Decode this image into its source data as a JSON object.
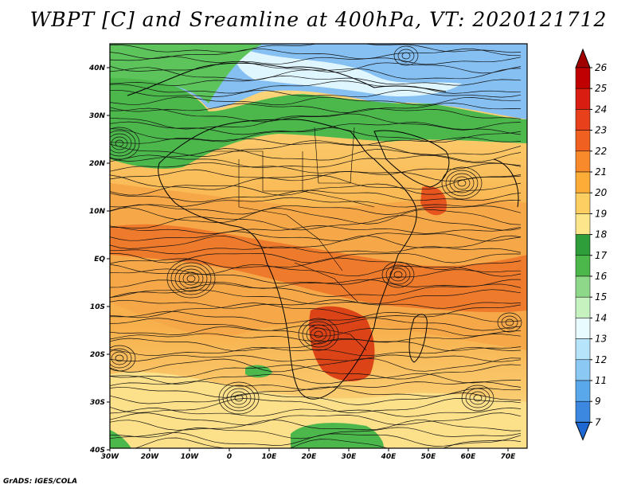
{
  "title": "WBPT [C] and Sreamline at 400hPa, VT: 2020121712",
  "credit": "GrADS: IGES/COLA",
  "map": {
    "lat_ticks": [
      "40N",
      "30N",
      "20N",
      "10N",
      "EQ",
      "10S",
      "20S",
      "30S",
      "40S"
    ],
    "lon_ticks": [
      "30W",
      "20W",
      "10W",
      "0",
      "10E",
      "20E",
      "30E",
      "40E",
      "50E",
      "60E",
      "70E"
    ],
    "lat_range": [
      -40,
      45
    ],
    "lon_range": [
      -30,
      75
    ]
  },
  "colorbar": {
    "labels": [
      "26",
      "25",
      "24",
      "23",
      "22",
      "21",
      "20",
      "19",
      "18",
      "17",
      "16",
      "15",
      "14",
      "13",
      "12",
      "11",
      "9",
      "7"
    ],
    "colors": [
      "#c00000",
      "#d81e10",
      "#e8401a",
      "#f06020",
      "#f88a2c",
      "#fbad38",
      "#fdce62",
      "#fde68a",
      "#2e9e3a",
      "#4cb84c",
      "#8ed88a",
      "#c6f2c0",
      "#e8fbff",
      "#b6e4fa",
      "#8cc8f4",
      "#5aa8ec",
      "#3c88e0",
      "#1e68d4"
    ]
  },
  "zones": [
    {
      "name": "blue-north",
      "color": "#7cb8f0"
    },
    {
      "name": "green-band",
      "color": "#4cb84c"
    },
    {
      "name": "yellow-band",
      "color": "#fde08a"
    },
    {
      "name": "orange-tropics",
      "color": "#f6a848"
    },
    {
      "name": "red-core",
      "color": "#e04a1c"
    }
  ]
}
